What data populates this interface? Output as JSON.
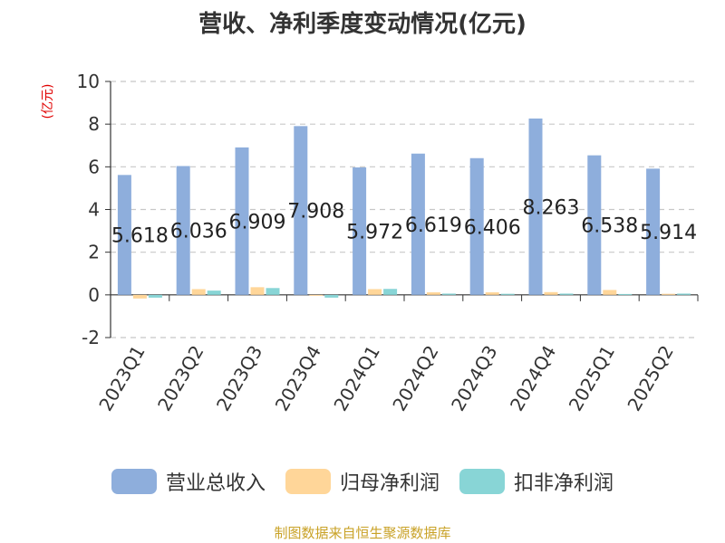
{
  "chart_data": {
    "type": "bar",
    "title": "营收、净利季度变动情况(亿元)",
    "unit_label": "(亿元)",
    "categories": [
      "2023Q1",
      "2023Q2",
      "2023Q3",
      "2023Q4",
      "2024Q1",
      "2024Q2",
      "2024Q3",
      "2024Q4",
      "2025Q1",
      "2025Q2"
    ],
    "ylim": [
      -2,
      10
    ],
    "yticks": [
      -2,
      0,
      2,
      4,
      6,
      8,
      10
    ],
    "grid": true,
    "legend_position": "bottom",
    "series": [
      {
        "name": "营业总收入",
        "color": "#8eaedc",
        "values": [
          5.618,
          6.036,
          6.909,
          7.908,
          5.972,
          6.619,
          6.406,
          8.263,
          6.538,
          5.914
        ],
        "data_labels": [
          "5.618",
          "6.036",
          "6.909",
          "7.908",
          "5.972",
          "6.619",
          "6.406",
          "8.263",
          "6.538",
          "5.914"
        ]
      },
      {
        "name": "归母净利润",
        "color": "#ffd699",
        "values": [
          -0.17,
          0.27,
          0.36,
          -0.03,
          0.27,
          0.12,
          0.12,
          0.13,
          0.23,
          0.05
        ]
      },
      {
        "name": "扣非净利润",
        "color": "#88d5d6",
        "values": [
          -0.13,
          0.2,
          0.32,
          -0.13,
          0.28,
          0.06,
          0.05,
          0.06,
          0.04,
          0.06
        ]
      }
    ]
  },
  "source_note": "制图数据来自恒生聚源数据库"
}
